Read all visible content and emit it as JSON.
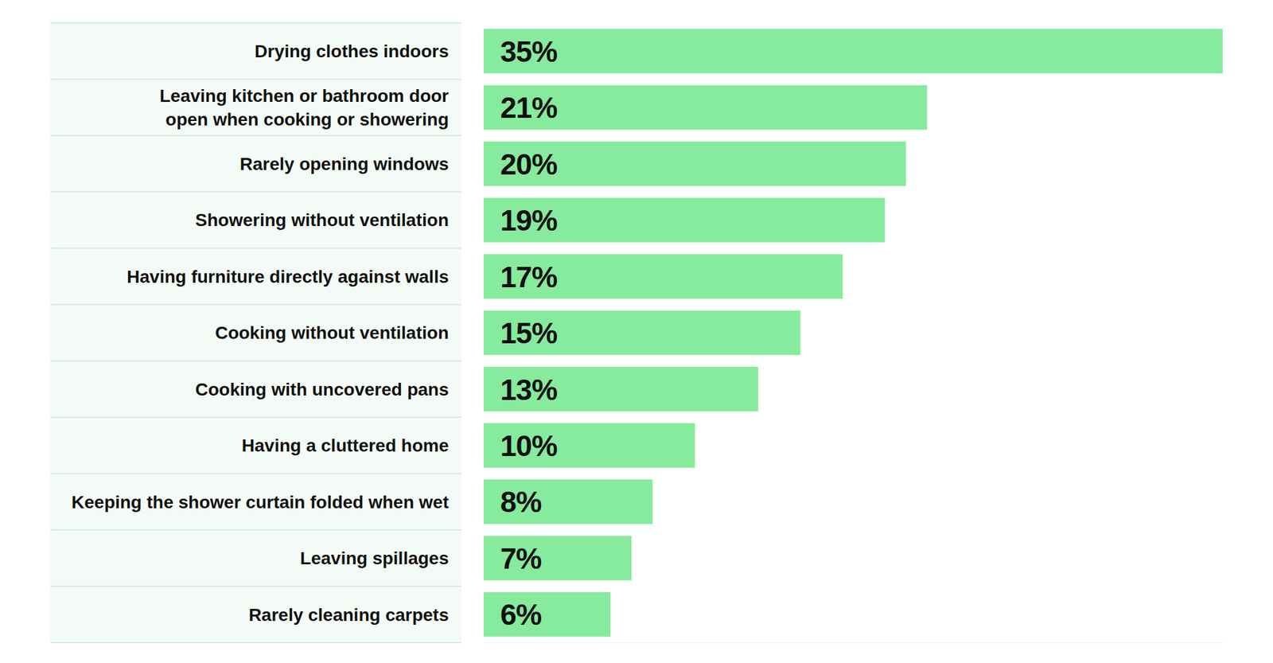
{
  "chart_data": {
    "type": "bar",
    "orientation": "horizontal",
    "categories": [
      "Drying clothes indoors",
      "Leaving kitchen or bathroom door\nopen when cooking or showering",
      "Rarely opening windows",
      "Showering without ventilation",
      "Having furniture directly against walls",
      "Cooking without ventilation",
      "Cooking with uncovered pans",
      "Having a cluttered home",
      "Keeping the shower curtain folded when wet",
      "Leaving spillages",
      "Rarely cleaning carpets"
    ],
    "values": [
      35,
      21,
      20,
      19,
      17,
      15,
      13,
      10,
      8,
      7,
      6
    ],
    "value_labels": [
      "35%",
      "21%",
      "20%",
      "19%",
      "17%",
      "15%",
      "13%",
      "10%",
      "8%",
      "7%",
      "6%"
    ],
    "color": "#86eb9c",
    "xlim": [
      0,
      35
    ],
    "data_labels": true,
    "tick_labels": "y",
    "grid": false
  }
}
